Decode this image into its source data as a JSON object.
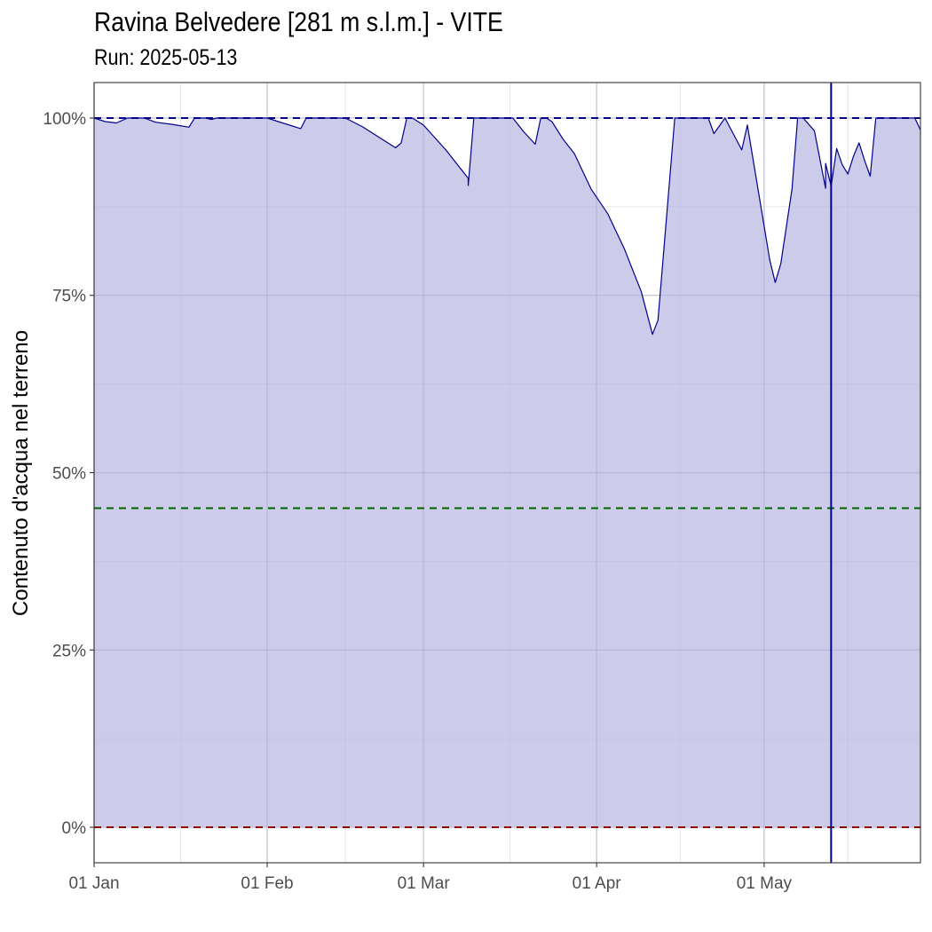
{
  "title": "Ravina Belvedere [281 m s.l.m.] - VITE",
  "subtitle": "Run: 2025-05-13",
  "chart_data": {
    "type": "area",
    "ylabel": "Contenuto d'acqua nel terreno",
    "xlabel": "",
    "ylim": [
      -5,
      105
    ],
    "xlim": [
      "2025-01-01",
      "2025-05-29"
    ],
    "x_ticks": [
      {
        "date": "2025-01-01",
        "label": "01 Jan"
      },
      {
        "date": "2025-02-01",
        "label": "01 Feb"
      },
      {
        "date": "2025-03-01",
        "label": "01 Mar"
      },
      {
        "date": "2025-04-01",
        "label": "01 Apr"
      },
      {
        "date": "2025-05-01",
        "label": "01 May"
      }
    ],
    "y_ticks": [
      {
        "value": 0,
        "label": "0%"
      },
      {
        "value": 25,
        "label": "25%"
      },
      {
        "value": 50,
        "label": "50%"
      },
      {
        "value": 75,
        "label": "75%"
      },
      {
        "value": 100,
        "label": "100%"
      }
    ],
    "grid": true,
    "reference_lines": [
      {
        "value": 100,
        "color": "#00008b",
        "style": "dashed"
      },
      {
        "value": 45,
        "color": "#006400",
        "style": "dashed"
      },
      {
        "value": 0,
        "color": "#8b0000",
        "style": "dashed"
      }
    ],
    "run_date_line": {
      "date": "2025-05-13",
      "color": "#00008b"
    },
    "series": [
      {
        "color": "#00008b",
        "fill": "#ccccea",
        "points": [
          [
            "2025-01-01",
            100
          ],
          [
            "2025-01-03",
            99.5
          ],
          [
            "2025-01-05",
            99.3
          ],
          [
            "2025-01-07",
            100
          ],
          [
            "2025-01-10",
            100
          ],
          [
            "2025-01-12",
            99.4
          ],
          [
            "2025-01-15",
            99.1
          ],
          [
            "2025-01-18",
            98.7
          ],
          [
            "2025-01-19",
            100
          ],
          [
            "2025-01-21",
            100
          ],
          [
            "2025-01-22",
            99.8
          ],
          [
            "2025-01-23",
            100
          ],
          [
            "2025-02-01",
            100
          ],
          [
            "2025-02-03",
            99.5
          ],
          [
            "2025-02-07",
            98.5
          ],
          [
            "2025-02-08",
            100
          ],
          [
            "2025-02-15",
            100
          ],
          [
            "2025-02-18",
            98.8
          ],
          [
            "2025-02-22",
            96.8
          ],
          [
            "2025-02-24",
            95.8
          ],
          [
            "2025-02-25",
            96.5
          ],
          [
            "2025-02-26",
            100
          ],
          [
            "2025-02-27",
            100
          ],
          [
            "2025-03-01",
            99
          ],
          [
            "2025-03-05",
            95.5
          ],
          [
            "2025-03-09",
            91.5
          ],
          [
            "2025-03-09",
            90.5
          ],
          [
            "2025-03-10",
            100
          ],
          [
            "2025-03-17",
            100
          ],
          [
            "2025-03-19",
            98
          ],
          [
            "2025-03-21",
            96.3
          ],
          [
            "2025-03-22",
            100
          ],
          [
            "2025-03-23",
            100
          ],
          [
            "2025-03-24",
            99.5
          ],
          [
            "2025-03-26",
            97
          ],
          [
            "2025-03-28",
            95
          ],
          [
            "2025-03-31",
            90
          ],
          [
            "2025-04-03",
            86.5
          ],
          [
            "2025-04-06",
            81.5
          ],
          [
            "2025-04-09",
            75.5
          ],
          [
            "2025-04-11",
            69.5
          ],
          [
            "2025-04-12",
            71.5
          ],
          [
            "2025-04-15",
            100
          ],
          [
            "2025-04-21",
            100
          ],
          [
            "2025-04-22",
            97.8
          ],
          [
            "2025-04-24",
            100
          ],
          [
            "2025-04-27",
            95.5
          ],
          [
            "2025-04-28",
            99
          ],
          [
            "2025-05-02",
            80
          ],
          [
            "2025-05-03",
            76.8
          ],
          [
            "2025-05-04",
            79.5
          ],
          [
            "2025-05-06",
            90
          ],
          [
            "2025-05-07",
            100
          ],
          [
            "2025-05-08",
            100
          ],
          [
            "2025-05-10",
            98.2
          ],
          [
            "2025-05-12",
            90.1
          ],
          [
            "2025-05-12",
            93.6
          ],
          [
            "2025-05-13",
            90.4
          ],
          [
            "2025-05-14",
            95.7
          ],
          [
            "2025-05-15",
            93.4
          ],
          [
            "2025-05-16",
            92.1
          ],
          [
            "2025-05-17",
            94.6
          ],
          [
            "2025-05-18",
            96.5
          ],
          [
            "2025-05-19",
            94
          ],
          [
            "2025-05-20",
            91.8
          ],
          [
            "2025-05-21",
            100
          ],
          [
            "2025-05-28",
            100
          ],
          [
            "2025-05-29",
            98.3
          ]
        ]
      }
    ]
  }
}
